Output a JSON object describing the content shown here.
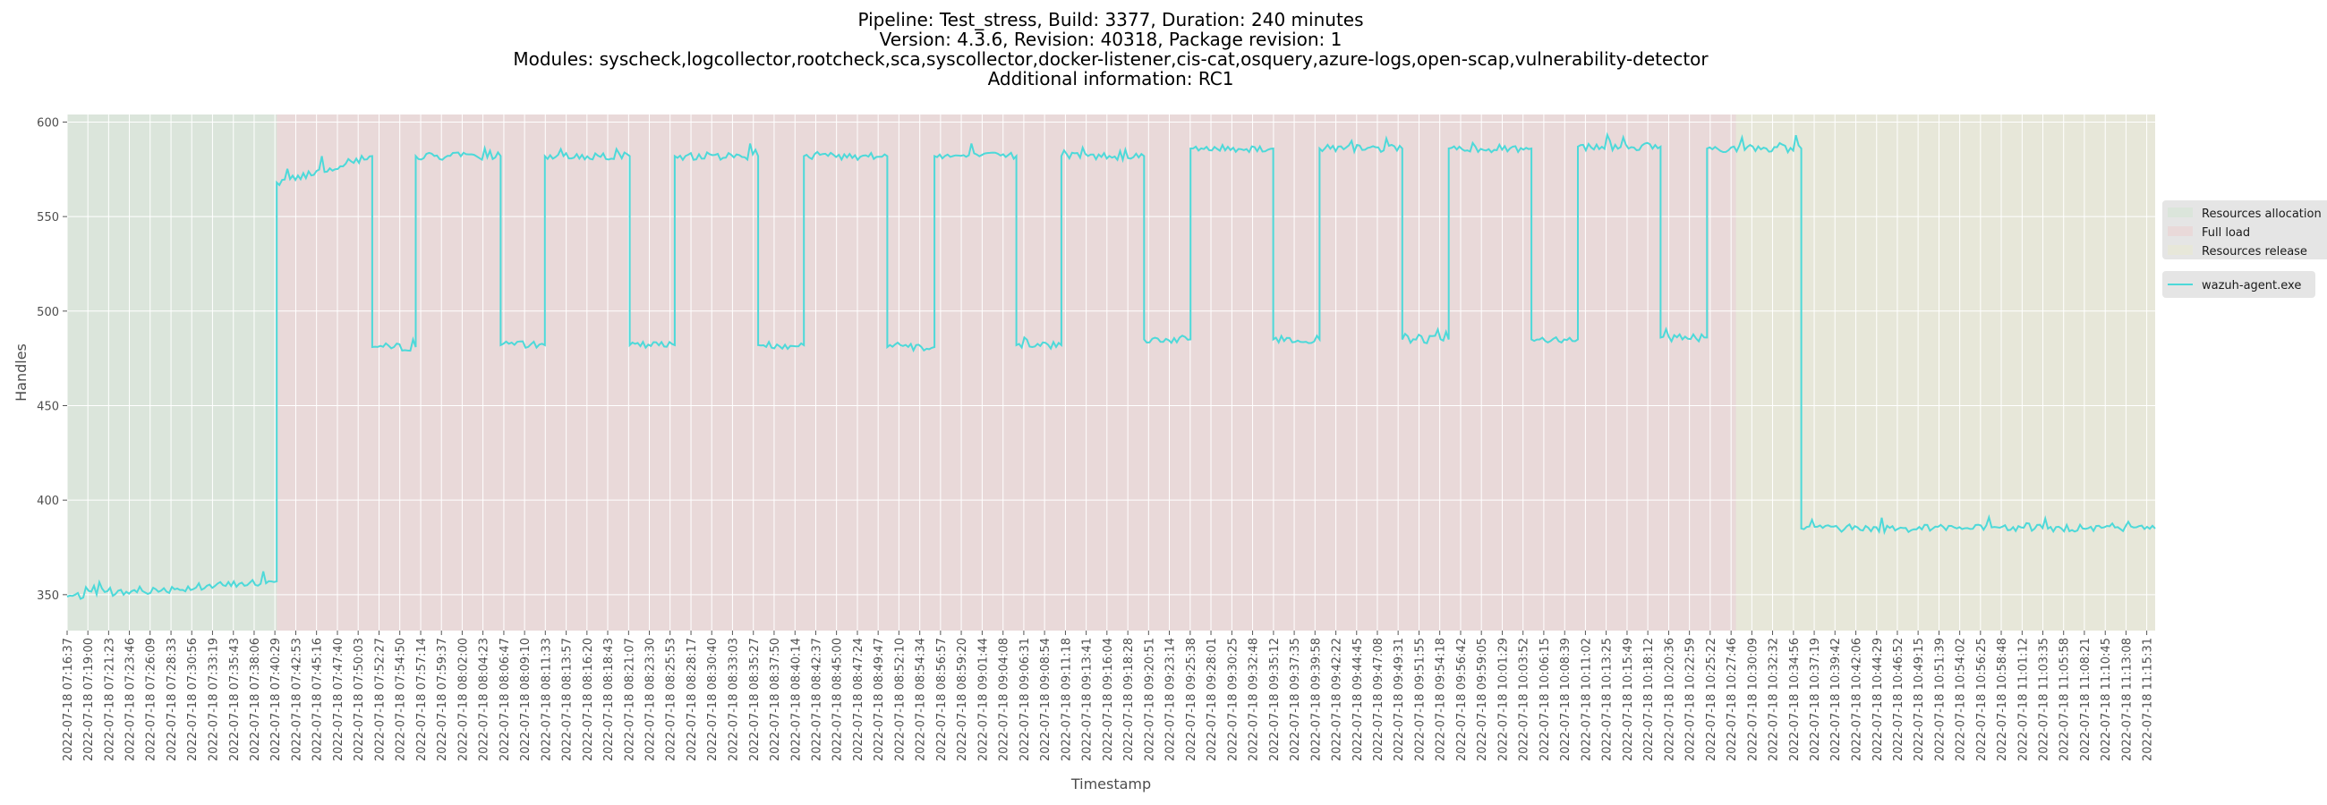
{
  "chart_data": {
    "type": "line",
    "title_lines": [
      "Pipeline: Test_stress, Build: 3377, Duration: 240 minutes",
      "Version: 4.3.6, Revision: 40318, Package revision: 1",
      "Modules: syscheck,logcollector,rootcheck,sca,syscollector,docker-listener,cis-cat,osquery,azure-logs,open-scap,vulnerability-detector",
      "Additional information: RC1"
    ],
    "xlabel": "Timestamp",
    "ylabel": "Handles",
    "ylim": [
      331,
      604
    ],
    "yticks": [
      350,
      400,
      450,
      500,
      550,
      600
    ],
    "grid": true,
    "background_color": "#e5e5e5",
    "line_color": "#4dd9d9",
    "x_ticks": [
      "2022-07-18 07:16:37",
      "2022-07-18 07:19:00",
      "2022-07-18 07:21:23",
      "2022-07-18 07:23:46",
      "2022-07-18 07:26:09",
      "2022-07-18 07:28:33",
      "2022-07-18 07:30:56",
      "2022-07-18 07:33:19",
      "2022-07-18 07:35:43",
      "2022-07-18 07:38:06",
      "2022-07-18 07:40:29",
      "2022-07-18 07:42:53",
      "2022-07-18 07:45:16",
      "2022-07-18 07:47:40",
      "2022-07-18 07:50:03",
      "2022-07-18 07:52:27",
      "2022-07-18 07:54:50",
      "2022-07-18 07:57:14",
      "2022-07-18 07:59:37",
      "2022-07-18 08:02:00",
      "2022-07-18 08:04:23",
      "2022-07-18 08:06:47",
      "2022-07-18 08:09:10",
      "2022-07-18 08:11:33",
      "2022-07-18 08:13:57",
      "2022-07-18 08:16:20",
      "2022-07-18 08:18:43",
      "2022-07-18 08:21:07",
      "2022-07-18 08:23:30",
      "2022-07-18 08:25:53",
      "2022-07-18 08:28:17",
      "2022-07-18 08:30:40",
      "2022-07-18 08:33:03",
      "2022-07-18 08:35:27",
      "2022-07-18 08:37:50",
      "2022-07-18 08:40:14",
      "2022-07-18 08:42:37",
      "2022-07-18 08:45:00",
      "2022-07-18 08:47:24",
      "2022-07-18 08:49:47",
      "2022-07-18 08:52:10",
      "2022-07-18 08:54:34",
      "2022-07-18 08:56:57",
      "2022-07-18 08:59:20",
      "2022-07-18 09:01:44",
      "2022-07-18 09:04:08",
      "2022-07-18 09:06:31",
      "2022-07-18 09:08:54",
      "2022-07-18 09:11:18",
      "2022-07-18 09:13:41",
      "2022-07-18 09:16:04",
      "2022-07-18 09:18:28",
      "2022-07-18 09:20:51",
      "2022-07-18 09:23:14",
      "2022-07-18 09:25:38",
      "2022-07-18 09:28:01",
      "2022-07-18 09:30:25",
      "2022-07-18 09:32:48",
      "2022-07-18 09:35:12",
      "2022-07-18 09:37:35",
      "2022-07-18 09:39:58",
      "2022-07-18 09:42:22",
      "2022-07-18 09:44:45",
      "2022-07-18 09:47:08",
      "2022-07-18 09:49:31",
      "2022-07-18 09:51:55",
      "2022-07-18 09:54:18",
      "2022-07-18 09:56:42",
      "2022-07-18 09:59:05",
      "2022-07-18 10:01:29",
      "2022-07-18 10:03:52",
      "2022-07-18 10:06:15",
      "2022-07-18 10:08:39",
      "2022-07-18 10:11:02",
      "2022-07-18 10:13:25",
      "2022-07-18 10:15:49",
      "2022-07-18 10:18:12",
      "2022-07-18 10:20:36",
      "2022-07-18 10:22:59",
      "2022-07-18 10:25:22",
      "2022-07-18 10:27:46",
      "2022-07-18 10:30:09",
      "2022-07-18 10:32:32",
      "2022-07-18 10:34:56",
      "2022-07-18 10:37:19",
      "2022-07-18 10:39:42",
      "2022-07-18 10:42:06",
      "2022-07-18 10:44:29",
      "2022-07-18 10:46:52",
      "2022-07-18 10:49:15",
      "2022-07-18 10:51:39",
      "2022-07-18 10:54:02",
      "2022-07-18 10:56:25",
      "2022-07-18 10:58:48",
      "2022-07-18 11:01:12",
      "2022-07-18 11:03:35",
      "2022-07-18 11:05:58",
      "2022-07-18 11:08:21",
      "2022-07-18 11:10:45",
      "2022-07-18 11:13:08",
      "2022-07-18 11:15:31"
    ],
    "x_range": [
      "2022-07-18 07:16:37",
      "2022-07-18 11:16:29"
    ],
    "phases": [
      {
        "name": "Resources allocation",
        "start": "2022-07-18 07:16:37",
        "end": "2022-07-18 07:40:42",
        "color": "#c9e6c9"
      },
      {
        "name": "Full load",
        "start": "2022-07-18 07:40:42",
        "end": "2022-07-18 10:28:20",
        "color": "#f2c4c4"
      },
      {
        "name": "Resources release",
        "start": "2022-07-18 10:28:20",
        "end": "2022-07-18 11:16:29",
        "color": "#ebebc4"
      }
    ],
    "series": [
      {
        "name": "wazuh-agent.exe",
        "color": "#4dd9d9",
        "levels": [
          {
            "start": "2022-07-18 07:16:37",
            "end": "2022-07-18 07:40:42",
            "from": 349,
            "to": 357
          },
          {
            "start": "2022-07-18 07:40:42",
            "end": "2022-07-18 07:51:40",
            "from": 568,
            "to": 582
          },
          {
            "start": "2022-07-18 07:51:40",
            "end": "2022-07-18 07:56:40",
            "from": 481,
            "to": 481
          },
          {
            "start": "2022-07-18 07:56:40",
            "end": "2022-07-18 08:06:25",
            "from": 582,
            "to": 582
          },
          {
            "start": "2022-07-18 08:06:25",
            "end": "2022-07-18 08:11:30",
            "from": 482,
            "to": 482
          },
          {
            "start": "2022-07-18 08:11:30",
            "end": "2022-07-18 08:21:15",
            "from": 582,
            "to": 582
          },
          {
            "start": "2022-07-18 08:21:15",
            "end": "2022-07-18 08:26:25",
            "from": 482,
            "to": 482
          },
          {
            "start": "2022-07-18 08:26:25",
            "end": "2022-07-18 08:36:00",
            "from": 582,
            "to": 582
          },
          {
            "start": "2022-07-18 08:36:00",
            "end": "2022-07-18 08:41:15",
            "from": 482,
            "to": 482
          },
          {
            "start": "2022-07-18 08:41:15",
            "end": "2022-07-18 08:50:50",
            "from": 582,
            "to": 582
          },
          {
            "start": "2022-07-18 08:50:50",
            "end": "2022-07-18 08:56:15",
            "from": 481,
            "to": 481
          },
          {
            "start": "2022-07-18 08:56:15",
            "end": "2022-07-18 09:05:40",
            "from": 582,
            "to": 582
          },
          {
            "start": "2022-07-18 09:05:40",
            "end": "2022-07-18 09:10:50",
            "from": 482,
            "to": 482
          },
          {
            "start": "2022-07-18 09:10:50",
            "end": "2022-07-18 09:20:20",
            "from": 582,
            "to": 582
          },
          {
            "start": "2022-07-18 09:20:20",
            "end": "2022-07-18 09:25:40",
            "from": 485,
            "to": 485
          },
          {
            "start": "2022-07-18 09:25:40",
            "end": "2022-07-18 09:35:10",
            "from": 586,
            "to": 586
          },
          {
            "start": "2022-07-18 09:35:10",
            "end": "2022-07-18 09:40:30",
            "from": 485,
            "to": 485
          },
          {
            "start": "2022-07-18 09:40:30",
            "end": "2022-07-18 09:50:00",
            "from": 586,
            "to": 586
          },
          {
            "start": "2022-07-18 09:50:00",
            "end": "2022-07-18 09:55:20",
            "from": 485,
            "to": 485
          },
          {
            "start": "2022-07-18 09:55:20",
            "end": "2022-07-18 10:04:50",
            "from": 586,
            "to": 586
          },
          {
            "start": "2022-07-18 10:04:50",
            "end": "2022-07-18 10:10:10",
            "from": 485,
            "to": 485
          },
          {
            "start": "2022-07-18 10:10:10",
            "end": "2022-07-18 10:19:40",
            "from": 587,
            "to": 587
          },
          {
            "start": "2022-07-18 10:19:40",
            "end": "2022-07-18 10:25:00",
            "from": 486,
            "to": 486
          },
          {
            "start": "2022-07-18 10:25:00",
            "end": "2022-07-18 10:35:50",
            "from": 586,
            "to": 586
          },
          {
            "start": "2022-07-18 10:35:50",
            "end": "2022-07-18 11:16:29",
            "from": 385,
            "to": 385
          }
        ]
      }
    ],
    "legend": {
      "placement": "right",
      "phase_labels": [
        "Resources allocation",
        "Full load",
        "Resources release"
      ],
      "series_labels": [
        "wazuh-agent.exe"
      ]
    }
  }
}
